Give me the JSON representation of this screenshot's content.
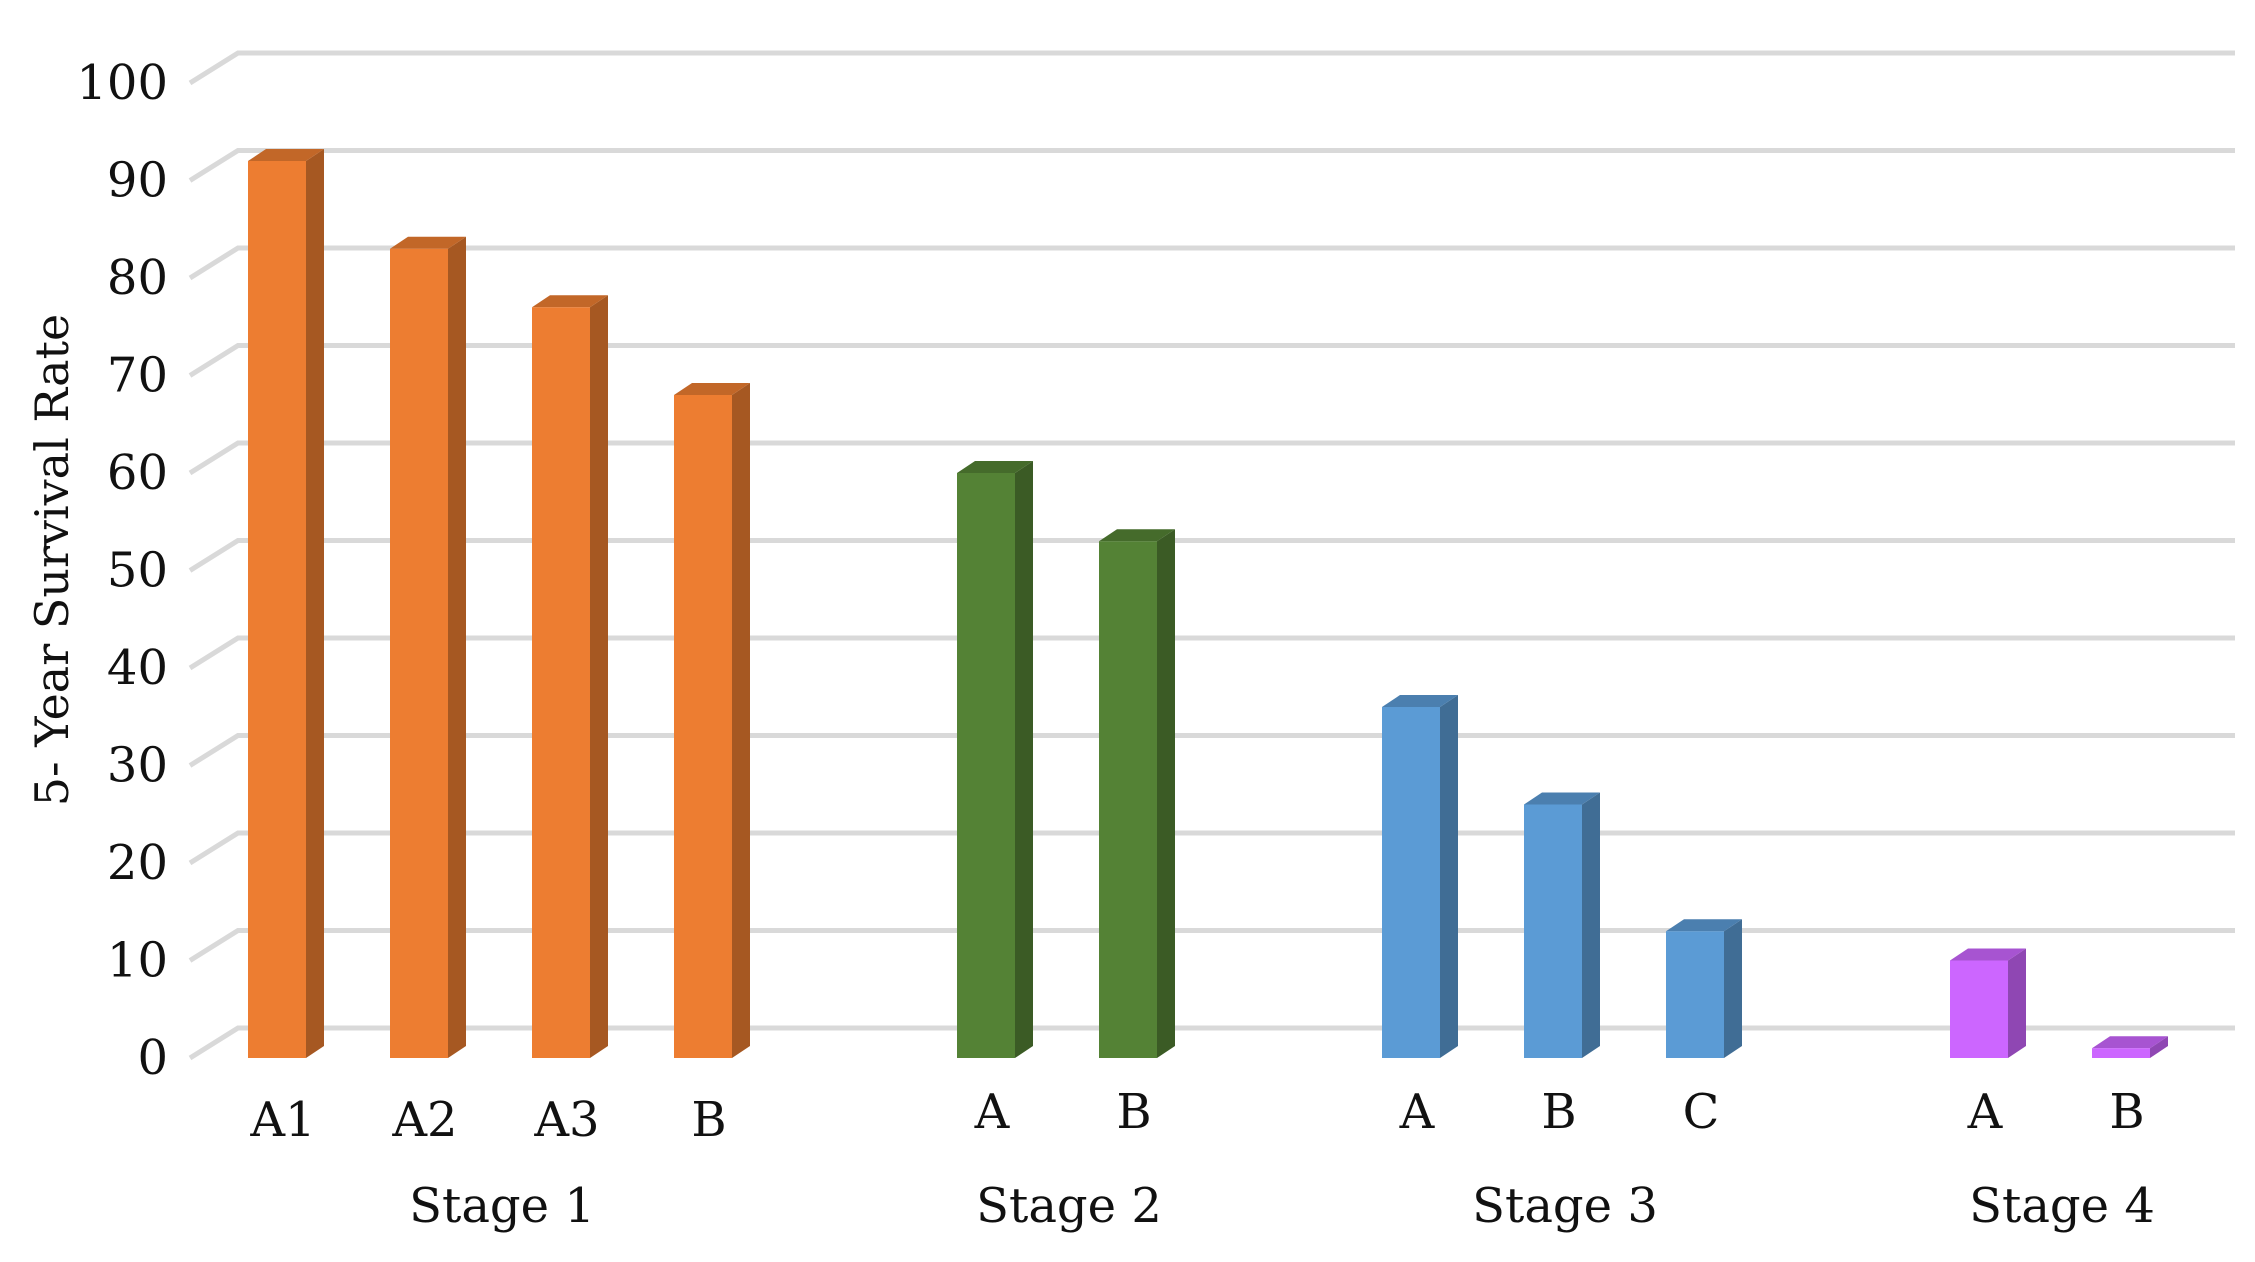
{
  "chart_data": {
    "type": "bar",
    "ylabel": "5- Year Survival Rate",
    "xlabel": "",
    "ylim": [
      0,
      100
    ],
    "y_ticks": [
      0,
      10,
      20,
      30,
      40,
      50,
      60,
      70,
      80,
      90,
      100
    ],
    "grid": true,
    "groups": [
      {
        "name": "Stage 1",
        "color": "#ED7D31",
        "categories": [
          "A1",
          "A2",
          "A3",
          "B"
        ],
        "values": [
          92,
          83,
          77,
          68
        ]
      },
      {
        "name": "Stage 2",
        "color": "#548235",
        "categories": [
          "A",
          "B"
        ],
        "values": [
          60,
          53
        ]
      },
      {
        "name": "Stage 3",
        "color": "#5B9BD5",
        "categories": [
          "A",
          "B",
          "C"
        ],
        "values": [
          36,
          26,
          13
        ]
      },
      {
        "name": "Stage 4",
        "color": "#CC66FF",
        "categories": [
          "A",
          "B"
        ],
        "values": [
          10,
          1
        ]
      }
    ]
  }
}
